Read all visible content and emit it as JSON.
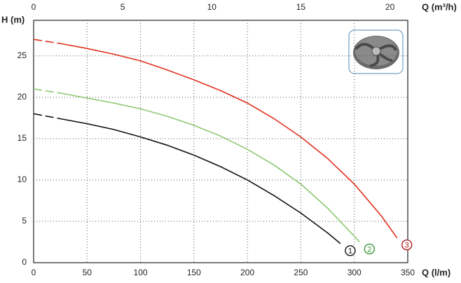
{
  "chart_data": {
    "type": "line",
    "y_label": "H (m)",
    "x_label": "Q (l/m)",
    "x2_label": "Q (m³/h)",
    "xlim": [
      0,
      350
    ],
    "xticks": [
      0,
      50,
      100,
      150,
      200,
      250,
      300,
      350
    ],
    "x2lim": [
      0,
      21
    ],
    "x2ticks": [
      0,
      5,
      10,
      15,
      20
    ],
    "ylim": [
      0,
      29.3
    ],
    "yticks": [
      0,
      5,
      10,
      15,
      20,
      25
    ],
    "grid": true,
    "dashed_segments": 1,
    "series": [
      {
        "name": "1",
        "color": "#111111",
        "label_color": "#111111",
        "x": [
          0,
          25,
          50,
          75,
          100,
          125,
          150,
          175,
          200,
          225,
          250,
          275,
          287
        ],
        "values": [
          18,
          17.4,
          16.8,
          16.1,
          15.2,
          14.2,
          13.0,
          11.6,
          10.0,
          8.1,
          6.0,
          3.6,
          2.3
        ]
      },
      {
        "name": "2",
        "color": "#8cc870",
        "label_color": "#3a9a3a",
        "x": [
          0,
          25,
          50,
          75,
          100,
          125,
          150,
          175,
          200,
          225,
          250,
          275,
          300,
          305
        ],
        "values": [
          21,
          20.5,
          19.9,
          19.3,
          18.6,
          17.7,
          16.6,
          15.3,
          13.7,
          11.8,
          9.5,
          6.6,
          3.2,
          2.5
        ]
      },
      {
        "name": "3",
        "color": "#e0301e",
        "label_color": "#b01c1c",
        "x": [
          0,
          25,
          50,
          75,
          100,
          125,
          150,
          175,
          200,
          225,
          250,
          275,
          300,
          325,
          340
        ],
        "values": [
          27,
          26.5,
          25.9,
          25.2,
          24.4,
          23.3,
          22.1,
          20.8,
          19.3,
          17.4,
          15.2,
          12.6,
          9.5,
          5.7,
          3.0
        ]
      }
    ]
  }
}
